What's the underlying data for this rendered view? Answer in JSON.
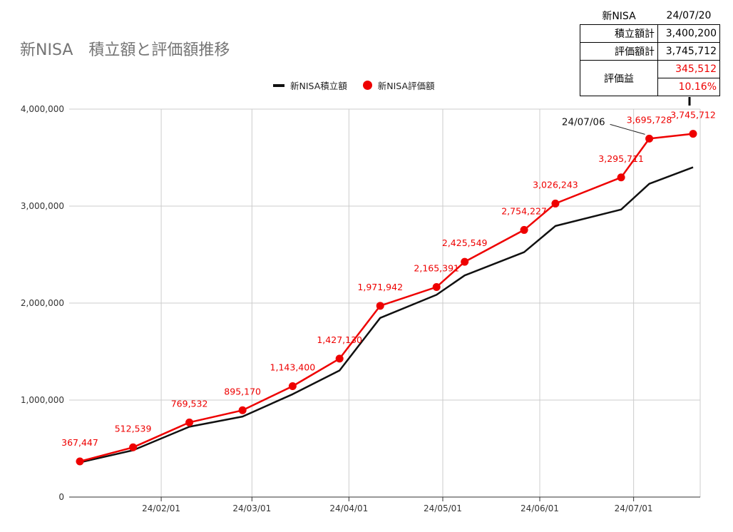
{
  "title": "新NISA　積立額と評価額推移",
  "legend": {
    "line_label": "新NISA積立額",
    "dot_label": "新NISA評価額"
  },
  "summary": {
    "header_left": "新NISA",
    "header_right": "24/07/20",
    "rows": [
      {
        "label": "積立額計",
        "value": "3,400,200"
      },
      {
        "label": "評価額計",
        "value": "3,745,712"
      }
    ],
    "gain_label": "評価益",
    "gain_value": "345,512",
    "gain_percent": "10.16%"
  },
  "annotation": {
    "text": "24/07/06"
  },
  "colors": {
    "line": "#111111",
    "dots": "#ee0000",
    "grid": "#cccccc",
    "axis": "#333333"
  },
  "chart_data": {
    "type": "line",
    "title": "新NISA　積立額と評価額推移",
    "xlabel": "",
    "ylabel": "",
    "xlim": [
      "2024-01-06",
      "2024-07-20"
    ],
    "ylim": [
      0,
      4000000
    ],
    "x_ticks": [
      "24/02/01",
      "24/03/01",
      "24/04/01",
      "24/05/01",
      "24/06/01",
      "24/07/01"
    ],
    "y_ticks": [
      "0",
      "1,000,000",
      "2,000,000",
      "3,000,000",
      "4,000,000"
    ],
    "grid": true,
    "legend_position": "top",
    "series": [
      {
        "name": "新NISA積立額",
        "style": "line",
        "x": [
          "2024-01-06",
          "2024-01-23",
          "2024-02-10",
          "2024-02-27",
          "2024-03-14",
          "2024-03-29",
          "2024-04-11",
          "2024-04-29",
          "2024-05-08",
          "2024-05-27",
          "2024-06-06",
          "2024-06-27",
          "2024-07-06",
          "2024-07-20"
        ],
        "y": [
          357000,
          482000,
          725000,
          830000,
          1060000,
          1305000,
          1847000,
          2085000,
          2285000,
          2525000,
          2795000,
          2965000,
          3230000,
          3400200
        ]
      },
      {
        "name": "新NISA評価額",
        "style": "line-markers",
        "x": [
          "2024-01-06",
          "2024-01-23",
          "2024-02-10",
          "2024-02-27",
          "2024-03-14",
          "2024-03-29",
          "2024-04-11",
          "2024-04-29",
          "2024-05-08",
          "2024-05-27",
          "2024-06-06",
          "2024-06-27",
          "2024-07-06",
          "2024-07-20"
        ],
        "y": [
          367447,
          512539,
          769532,
          895170,
          1143400,
          1427130,
          1971942,
          2165391,
          2425549,
          2754227,
          3026243,
          3295711,
          3695728,
          3745712
        ],
        "labels": [
          "367,447",
          "512,539",
          "769,532",
          "895,170",
          "1,143,400",
          "1,427,130",
          "1,971,942",
          "2,165,391",
          "2,425,549",
          "2,754,227",
          "3,026,243",
          "3,295,711",
          "3,695,728",
          "3,745,712"
        ]
      }
    ]
  }
}
